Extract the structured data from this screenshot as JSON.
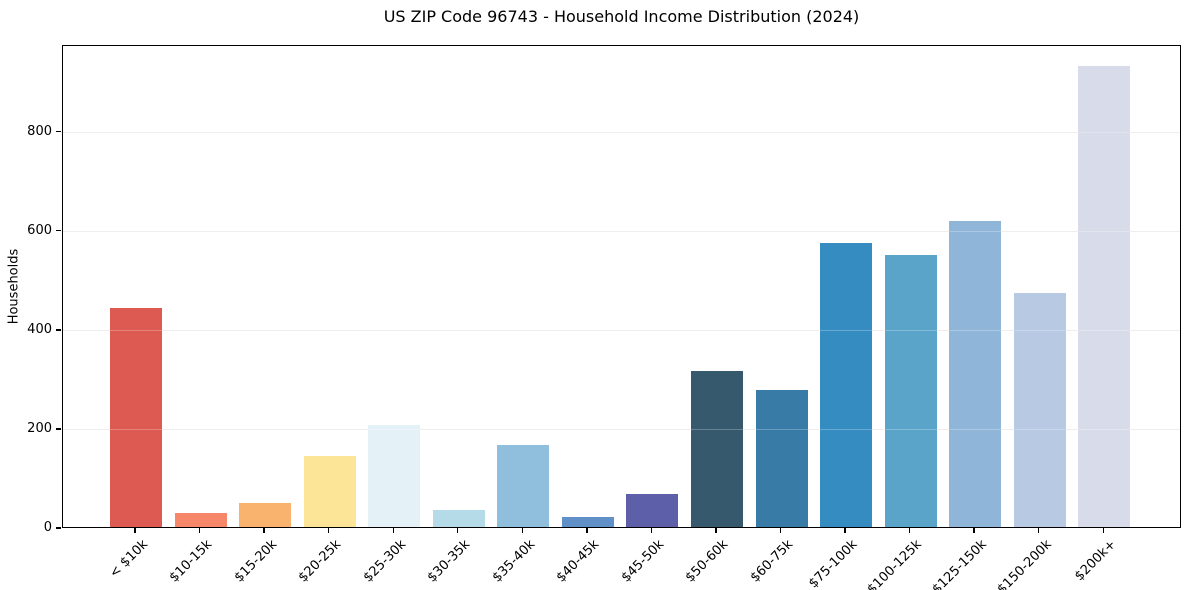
{
  "figure": {
    "background": "#ffffff",
    "spine_color": "#000000",
    "grid_color": "#e9e9e9"
  },
  "chart_data": {
    "type": "bar",
    "title": "US ZIP Code 96743 - Household Income Distribution (2024)",
    "xlabel": "",
    "ylabel": "Households",
    "categories": [
      "< $10k",
      "$10-15k",
      "$15-20k",
      "$20-25k",
      "$25-30k",
      "$30-35k",
      "$35-40k",
      "$40-45k",
      "$45-50k",
      "$50-60k",
      "$60-75k",
      "$75-100k",
      "$100-125k",
      "$125-150k",
      "$150-200k",
      "$200k+"
    ],
    "values": [
      443,
      28,
      48,
      144,
      205,
      34,
      166,
      20,
      67,
      315,
      277,
      573,
      549,
      618,
      472,
      931
    ],
    "bar_colors": [
      "#dc5a52",
      "#f7876a",
      "#f9b36f",
      "#fde598",
      "#e4f2f8",
      "#b5dbe9",
      "#90bfdd",
      "#6190c8",
      "#5d60a8",
      "#36596e",
      "#377ba6",
      "#348cc0",
      "#5aa3c9",
      "#8fb5d9",
      "#b8c9e3",
      "#d8dbe9"
    ],
    "ylim": [
      0,
      975
    ],
    "yticks": [
      0,
      200,
      400,
      600,
      800
    ],
    "grid": "horizontal gridlines at y ticks",
    "legend": "none"
  }
}
